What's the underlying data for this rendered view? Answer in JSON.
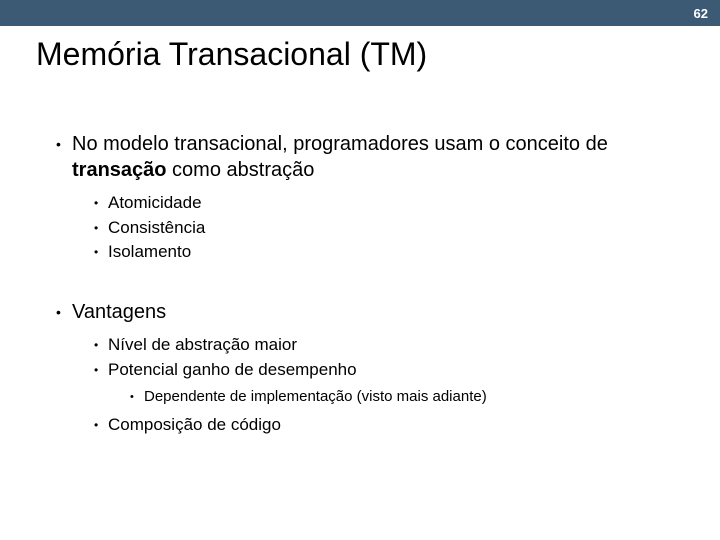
{
  "header": {
    "bar_color": "#3d5a75",
    "page_number": "62"
  },
  "title": "Memória Transacional (TM)",
  "body": {
    "items": [
      {
        "text_pre": "No modelo transacional, programadores usam o conceito de ",
        "text_bold": "transação",
        "text_post": " como abstração",
        "children": [
          {
            "text": "Atomicidade"
          },
          {
            "text": "Consistência"
          },
          {
            "text": "Isolamento"
          }
        ]
      },
      {
        "text": "Vantagens",
        "spaced": true,
        "children": [
          {
            "text": "Nível de abstração maior"
          },
          {
            "text": "Potencial ganho de desempenho",
            "children": [
              {
                "text": "Dependente de implementação (visto mais adiante)"
              }
            ]
          },
          {
            "text": "Composição de código"
          }
        ]
      }
    ]
  }
}
